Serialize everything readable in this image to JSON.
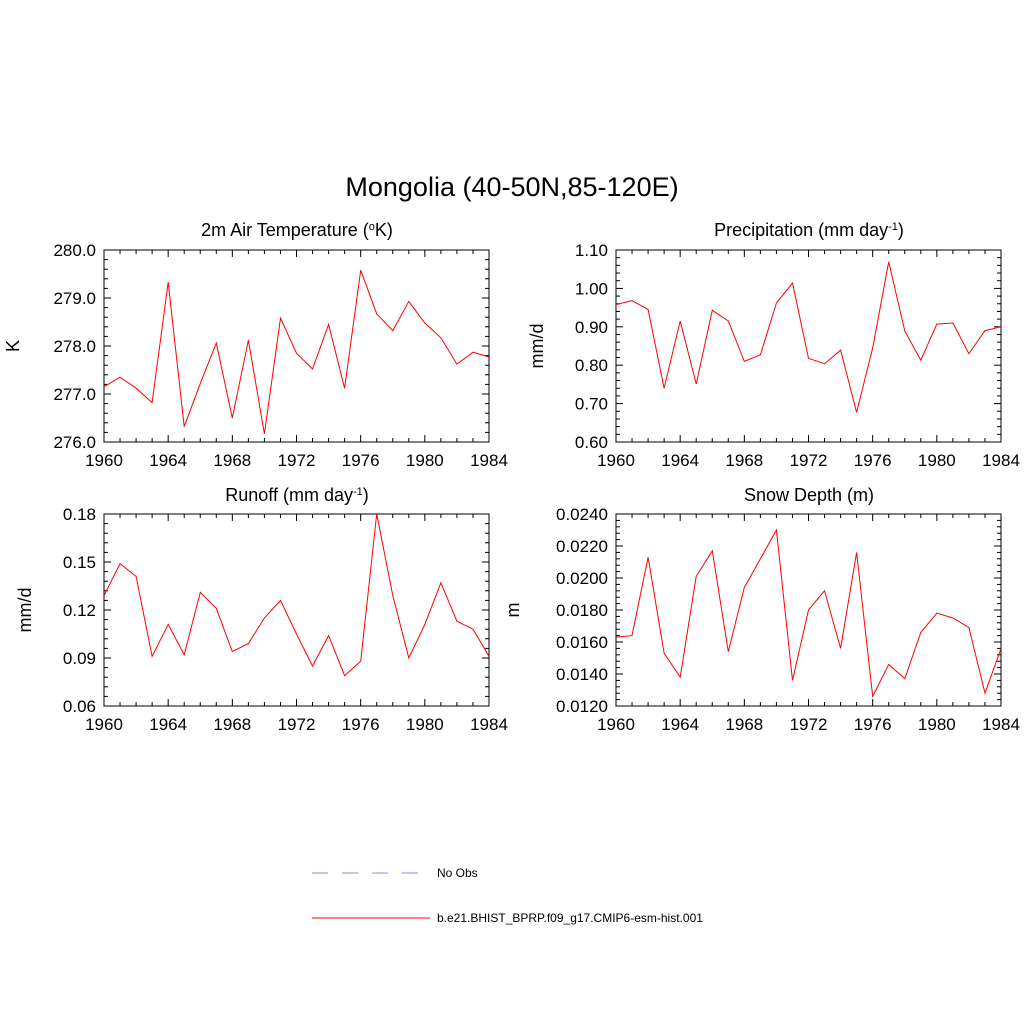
{
  "page_title": "Mongolia (40-50N,85-120E)",
  "legend": [
    {
      "label": "No Obs",
      "color": "#a0a0f0",
      "style": "dashed"
    },
    {
      "label": "b.e21.BHIST_BPRP.f09_g17.CMIP6-esm-hist.001",
      "color": "#ff0000",
      "style": "solid"
    }
  ],
  "chart_data": [
    {
      "type": "line",
      "title": "2m Air Temperature (°K)",
      "title_main": "2m Air Temperature (",
      "title_sup": "o",
      "title_end": "K)",
      "ylabel": "K",
      "xlim": [
        1960,
        1984
      ],
      "ylim": [
        276.0,
        280.0
      ],
      "xticks": [
        1960,
        1964,
        1968,
        1972,
        1976,
        1980,
        1984
      ],
      "xticklabels": [
        "1960",
        "1964",
        "1968",
        "1972",
        "1976",
        "1980",
        "1984"
      ],
      "yticks": [
        276.0,
        277.0,
        278.0,
        279.0,
        280.0
      ],
      "yticklabels": [
        "276.0",
        "277.0",
        "278.0",
        "279.0",
        "280.0"
      ],
      "grid": false,
      "series": [
        {
          "color": "#ff0000",
          "x": [
            1960,
            1961,
            1962,
            1963,
            1964,
            1965,
            1966,
            1967,
            1968,
            1969,
            1970,
            1971,
            1972,
            1973,
            1974,
            1975,
            1976,
            1977,
            1978,
            1979,
            1980,
            1981,
            1982,
            1983,
            1984
          ],
          "y": [
            277.15,
            277.35,
            277.12,
            276.82,
            279.33,
            276.32,
            277.22,
            278.06,
            276.5,
            278.12,
            276.17,
            278.58,
            277.85,
            277.52,
            278.45,
            277.12,
            279.58,
            278.67,
            278.32,
            278.93,
            278.48,
            278.17,
            277.62,
            277.87,
            277.77
          ]
        }
      ]
    },
    {
      "type": "line",
      "title": "Precipitation (mm day-1)",
      "title_main": "Precipitation (mm day",
      "title_sup": "-1",
      "title_end": ")",
      "ylabel": "mm/d",
      "xlim": [
        1960,
        1984
      ],
      "ylim": [
        0.6,
        1.1
      ],
      "xticks": [
        1960,
        1964,
        1968,
        1972,
        1976,
        1980,
        1984
      ],
      "xticklabels": [
        "1960",
        "1964",
        "1968",
        "1972",
        "1976",
        "1980",
        "1984"
      ],
      "yticks": [
        0.6,
        0.7,
        0.8,
        0.9,
        1.0,
        1.1
      ],
      "yticklabels": [
        "0.60",
        "0.70",
        "0.80",
        "0.90",
        "1.00",
        "1.10"
      ],
      "grid": false,
      "series": [
        {
          "color": "#ff0000",
          "x": [
            1960,
            1961,
            1962,
            1963,
            1964,
            1965,
            1966,
            1967,
            1968,
            1969,
            1970,
            1971,
            1972,
            1973,
            1974,
            1975,
            1976,
            1977,
            1978,
            1979,
            1980,
            1981,
            1982,
            1983,
            1984
          ],
          "y": [
            0.958,
            0.968,
            0.945,
            0.74,
            0.915,
            0.751,
            0.943,
            0.915,
            0.81,
            0.827,
            0.962,
            1.014,
            0.818,
            0.804,
            0.839,
            0.677,
            0.845,
            1.069,
            0.889,
            0.813,
            0.907,
            0.91,
            0.83,
            0.89,
            0.9
          ]
        }
      ]
    },
    {
      "type": "line",
      "title": "Runoff (mm day-1)",
      "title_main": "Runoff (mm day",
      "title_sup": "-1",
      "title_end": ")",
      "ylabel": "mm/d",
      "xlim": [
        1960,
        1984
      ],
      "ylim": [
        0.06,
        0.18
      ],
      "xticks": [
        1960,
        1964,
        1968,
        1972,
        1976,
        1980,
        1984
      ],
      "xticklabels": [
        "1960",
        "1964",
        "1968",
        "1972",
        "1976",
        "1980",
        "1984"
      ],
      "yticks": [
        0.06,
        0.09,
        0.12,
        0.15,
        0.18
      ],
      "yticklabels": [
        "0.06",
        "0.09",
        "0.12",
        "0.15",
        "0.18"
      ],
      "grid": false,
      "series": [
        {
          "color": "#ff0000",
          "x": [
            1960,
            1961,
            1962,
            1963,
            1964,
            1965,
            1966,
            1967,
            1968,
            1969,
            1970,
            1971,
            1972,
            1973,
            1974,
            1975,
            1976,
            1977,
            1978,
            1979,
            1980,
            1981,
            1982,
            1983,
            1984
          ],
          "y": [
            0.129,
            0.149,
            0.141,
            0.091,
            0.111,
            0.092,
            0.131,
            0.121,
            0.094,
            0.099,
            0.115,
            0.126,
            0.105,
            0.085,
            0.104,
            0.079,
            0.088,
            0.18,
            0.129,
            0.09,
            0.111,
            0.137,
            0.113,
            0.108,
            0.091
          ]
        }
      ]
    },
    {
      "type": "line",
      "title": "Snow Depth (m)",
      "title_main": "Snow Depth (m)",
      "title_sup": "",
      "title_end": "",
      "ylabel": "m",
      "xlim": [
        1960,
        1984
      ],
      "ylim": [
        0.012,
        0.024
      ],
      "xticks": [
        1960,
        1964,
        1968,
        1972,
        1976,
        1980,
        1984
      ],
      "xticklabels": [
        "1960",
        "1964",
        "1968",
        "1972",
        "1976",
        "1980",
        "1984"
      ],
      "yticks": [
        0.012,
        0.014,
        0.016,
        0.018,
        0.02,
        0.022,
        0.024
      ],
      "yticklabels": [
        "0.0120",
        "0.0140",
        "0.0160",
        "0.0180",
        "0.0200",
        "0.0220",
        "0.0240"
      ],
      "grid": false,
      "series": [
        {
          "color": "#ff0000",
          "x": [
            1960,
            1961,
            1962,
            1963,
            1964,
            1965,
            1966,
            1967,
            1968,
            1969,
            1970,
            1971,
            1972,
            1973,
            1974,
            1975,
            1976,
            1977,
            1978,
            1979,
            1980,
            1981,
            1982,
            1983,
            1984
          ],
          "y": [
            0.0163,
            0.0164,
            0.0213,
            0.0153,
            0.0138,
            0.0201,
            0.0217,
            0.0154,
            0.0194,
            0.0212,
            0.023,
            0.0136,
            0.018,
            0.0192,
            0.0156,
            0.0216,
            0.0126,
            0.0146,
            0.0137,
            0.0166,
            0.0178,
            0.0175,
            0.0169,
            0.0128,
            0.0156
          ]
        }
      ]
    }
  ]
}
